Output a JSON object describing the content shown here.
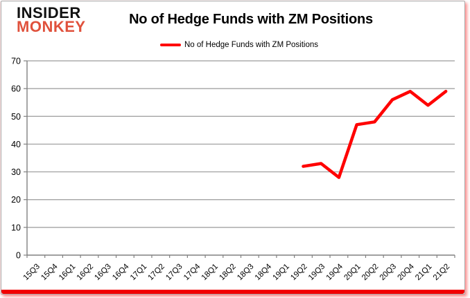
{
  "header": {
    "logo_line1": "INSIDER",
    "logo_line2": "MONKEY",
    "title": "No of Hedge Funds with ZM Positions",
    "legend_label": "No of Hedge Funds with ZM Positions"
  },
  "colors": {
    "line": "#ff0000",
    "logo_accent": "#e0513c",
    "grid": "#9a9a9a",
    "axis": "#808080",
    "tick_text": "#000000",
    "bottom_bar": "#f20000"
  },
  "chart_data": {
    "type": "line",
    "title": "No of Hedge Funds with ZM Positions",
    "xlabel": "",
    "ylabel": "",
    "ylim": [
      0,
      70
    ],
    "ytick_step": 10,
    "grid": true,
    "legend_position": "top",
    "categories": [
      "15Q3",
      "15Q4",
      "16Q1",
      "16Q2",
      "16Q3",
      "16Q4",
      "17Q1",
      "17Q2",
      "17Q3",
      "17Q4",
      "18Q1",
      "18Q2",
      "18Q3",
      "18Q4",
      "19Q1",
      "19Q2",
      "19Q3",
      "19Q4",
      "20Q1",
      "20Q2",
      "20Q3",
      "20Q4",
      "21Q1",
      "21Q2"
    ],
    "series": [
      {
        "name": "No of Hedge Funds with ZM Positions",
        "values": [
          null,
          null,
          null,
          null,
          null,
          null,
          null,
          null,
          null,
          null,
          null,
          null,
          null,
          null,
          null,
          32,
          33,
          28,
          47,
          48,
          56,
          59,
          54,
          59
        ]
      }
    ]
  }
}
